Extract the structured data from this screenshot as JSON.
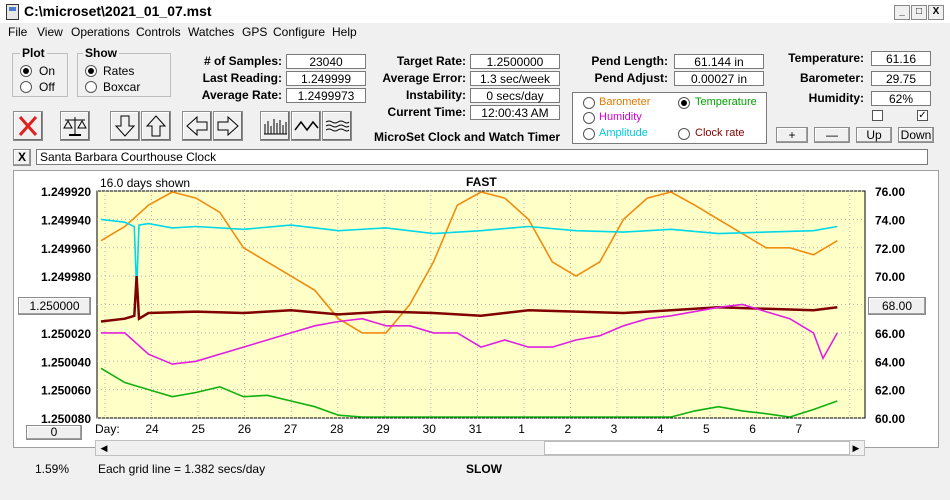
{
  "window": {
    "title": "C:\\microset\\2021_01_07.mst",
    "min": "_",
    "max": "□",
    "close": "X"
  },
  "menu": [
    {
      "label": "File"
    },
    {
      "label": "View"
    },
    {
      "label": "Operations"
    },
    {
      "label": "Controls"
    },
    {
      "label": "Watches"
    },
    {
      "label": "GPS"
    },
    {
      "label": "Configure"
    },
    {
      "label": "Help"
    }
  ],
  "plot_group": {
    "title": "Plot",
    "on": "On",
    "off": "Off",
    "selected": "On"
  },
  "show_group": {
    "title": "Show",
    "rates": "Rates",
    "boxcar": "Boxcar",
    "selected": "Rates"
  },
  "stats": {
    "samples_label": "# of Samples:",
    "samples": "23040",
    "last_label": "Last Reading:",
    "last": "1.249999",
    "avg_label": "Average Rate:",
    "avg": "1.2499973"
  },
  "rates": {
    "target_label": "Target Rate:",
    "target": "1.2500000",
    "error_label": "Average Error:",
    "error": "1.3 sec/week",
    "instab_label": "Instability:",
    "instab": "0 secs/day",
    "time_label": "Current Time:",
    "time": "12:00:43 AM"
  },
  "subtitle": "MicroSet Clock and Watch Timer",
  "pend": {
    "length_label": "Pend Length:",
    "length": "61.144 in",
    "adjust_label": "Pend Adjust:",
    "adjust": "0.00027 in"
  },
  "sensor_select": {
    "barometer": "Barometer",
    "temperature": "Temperature",
    "humidity": "Humidity",
    "amplitude": "Amplitude",
    "clock_rate": "Clock rate",
    "selected": "Temperature",
    "colors": {
      "barometer": "#e07800",
      "temperature": "#00a000",
      "humidity": "#d000d0",
      "amplitude": "#00c8e0",
      "clock_rate": "#800000"
    }
  },
  "env": {
    "temp_label": "Temperature:",
    "temp": "61.16",
    "baro_label": "Barometer:",
    "baro": "29.75",
    "hum_label": "Humidity:",
    "hum": "62%",
    "check1": false,
    "check2": true
  },
  "scale_buttons": {
    "plus": "+",
    "minus": "—",
    "up": "Up",
    "down": "Down"
  },
  "clock_name": "Santa Barbara Courthouse Clock",
  "clear_btn": "X",
  "toolbar_icons": [
    "stop-icon",
    "scale-icon",
    "arrow-down-icon",
    "arrow-up-icon",
    "arrow-left-icon",
    "arrow-right-icon",
    "histogram-icon",
    "wave-icon",
    "smooth-wave-icon"
  ],
  "chart_data": {
    "type": "line",
    "top_label": "FAST",
    "bottom_label": "SLOW",
    "days_shown": "16.0 days shown",
    "grid_note": "Each grid line = 1.382 secs/day",
    "left_percent": "1.59%",
    "left_center_button": "1.250000",
    "right_center_button": "68.00",
    "bottom_left_button": "0",
    "x_prefix": "Day:",
    "x_ticks": [
      "24",
      "25",
      "26",
      "27",
      "28",
      "29",
      "30",
      "31",
      "1",
      "2",
      "3",
      "4",
      "5",
      "6",
      "7"
    ],
    "y_left_ticks": [
      "1.249920",
      "1.249940",
      "1.249960",
      "1.249980",
      "1.250000",
      "1.250020",
      "1.250040",
      "1.250060",
      "1.250080"
    ],
    "y_right_ticks": [
      "76.00",
      "74.00",
      "72.00",
      "70.00",
      "68.00",
      "66.00",
      "64.00",
      "62.00",
      "60.00"
    ],
    "ylim_left": [
      1.24992,
      1.25008
    ],
    "ylim_right": [
      60,
      76
    ],
    "series": [
      {
        "name": "Barometer",
        "color": "#f08c10",
        "x": [
          0,
          0.5,
          1,
          1.5,
          2,
          2.5,
          3,
          3.5,
          4,
          4.5,
          5,
          5.5,
          6,
          6.5,
          7,
          7.5,
          8,
          8.5,
          9,
          9.5,
          10,
          10.5,
          11,
          11.5,
          12,
          12.5,
          13,
          13.5,
          14,
          14.5,
          15,
          15.5
        ],
        "y": [
          72.5,
          73.5,
          75,
          76,
          75.5,
          74.5,
          72,
          71,
          70,
          69,
          67,
          66,
          66,
          68,
          71,
          75,
          76,
          75.5,
          74,
          71,
          70,
          71,
          74,
          75.5,
          76,
          75,
          74,
          73,
          72,
          72,
          71.5,
          72.5
        ]
      },
      {
        "name": "Amplitude",
        "color": "#00d8e8",
        "x": [
          0,
          0.5,
          0.7,
          0.75,
          0.8,
          1,
          1.5,
          2,
          3,
          4,
          5,
          6,
          7,
          8,
          9,
          10,
          11,
          12,
          13,
          14,
          15,
          15.5
        ],
        "y": [
          74,
          73.8,
          73.5,
          69,
          73.6,
          73.7,
          73.4,
          73.5,
          73.3,
          73.6,
          73.2,
          73.4,
          73.0,
          73.2,
          73.5,
          73.2,
          73.1,
          73.3,
          73.0,
          73.1,
          73.2,
          73.5
        ]
      },
      {
        "name": "Clock rate",
        "color": "#800000",
        "x": [
          0,
          0.5,
          0.7,
          0.75,
          0.8,
          1,
          2,
          3,
          4,
          5,
          6,
          7,
          8,
          9,
          10,
          11,
          12,
          13,
          14,
          15,
          15.5
        ],
        "y": [
          66.8,
          67.0,
          67.2,
          70,
          67.0,
          67.4,
          67.5,
          67.4,
          67.6,
          67.3,
          67.5,
          67.4,
          67.2,
          67.6,
          67.5,
          67.4,
          67.6,
          67.8,
          67.7,
          67.6,
          67.8
        ]
      },
      {
        "name": "Humidity",
        "color": "#e020e0",
        "x": [
          0,
          0.5,
          1,
          1.5,
          2,
          3,
          4,
          4.5,
          5,
          5.5,
          6,
          6.5,
          7,
          7.5,
          8,
          8.5,
          9,
          9.5,
          10,
          10.5,
          11,
          11.5,
          12,
          12.5,
          13,
          13.5,
          14,
          14.5,
          15,
          15.2,
          15.5
        ],
        "y": [
          66,
          66,
          64.5,
          63.8,
          64,
          65,
          66,
          66.5,
          66.8,
          67,
          66.5,
          66.5,
          66,
          66,
          65,
          65.5,
          65,
          65,
          65.5,
          65.8,
          66.5,
          67,
          67.2,
          67.5,
          67.8,
          68,
          67.5,
          67,
          66,
          64.2,
          66
        ]
      },
      {
        "name": "Temperature",
        "color": "#10b010",
        "x": [
          0,
          0.5,
          1,
          1.5,
          2,
          2.5,
          3,
          3.5,
          4,
          4.5,
          5,
          5.5,
          6,
          6.5,
          7,
          7.5,
          8,
          8.5,
          9,
          9.5,
          10,
          10.5,
          11,
          11.5,
          12,
          12.5,
          13,
          13.5,
          14,
          14.5,
          15,
          15.5
        ],
        "y": [
          63.5,
          62.5,
          62.0,
          61.5,
          61.8,
          62.2,
          61.5,
          61.6,
          61.2,
          60.8,
          60.2,
          60,
          60,
          60,
          60,
          60,
          60,
          60,
          60,
          60,
          60,
          60,
          60,
          60,
          60,
          60.5,
          60.8,
          60.5,
          60.3,
          60,
          60.6,
          61.2
        ]
      }
    ]
  }
}
